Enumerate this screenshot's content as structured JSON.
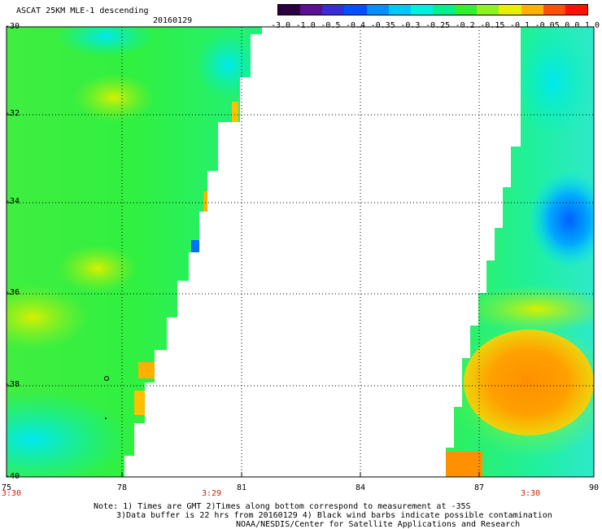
{
  "header": {
    "title": "ASCAT 25KM MLE-1 descending",
    "date": "20160129"
  },
  "colorbar": {
    "labels": [
      "-3.0",
      "-1.0",
      "-0.5",
      "-0.4",
      "-0.35",
      "-0.3",
      "-0.25",
      "-0.2",
      "-0.15",
      "-0.1",
      "-0.05",
      "0.0",
      "1.0"
    ],
    "colors": [
      "#2a0040",
      "#5a1090",
      "#3a2cd8",
      "#0050ff",
      "#0090ff",
      "#00c8ff",
      "#00f0e0",
      "#00f090",
      "#30f030",
      "#90f020",
      "#e8f000",
      "#ffb000",
      "#ff5000",
      "#ff1000"
    ]
  },
  "axes": {
    "y_labels": [
      "-30",
      "-32",
      "-34",
      "-36",
      "-38",
      "-40"
    ],
    "x_labels": [
      "75",
      "78",
      "81",
      "84",
      "87",
      "90"
    ],
    "times": [
      "3:30",
      "3:29",
      "3:30"
    ]
  },
  "notes": {
    "line1": "Note: 1) Times are GMT 2)Times along bottom correspond to measurement at -35S",
    "line2": "3)Data buffer is 22 hrs from 20160129 4) Black wind barbs indicate possible contamination",
    "line3": "NOAA/NESDIS/Center for Satellite Applications and Research"
  }
}
